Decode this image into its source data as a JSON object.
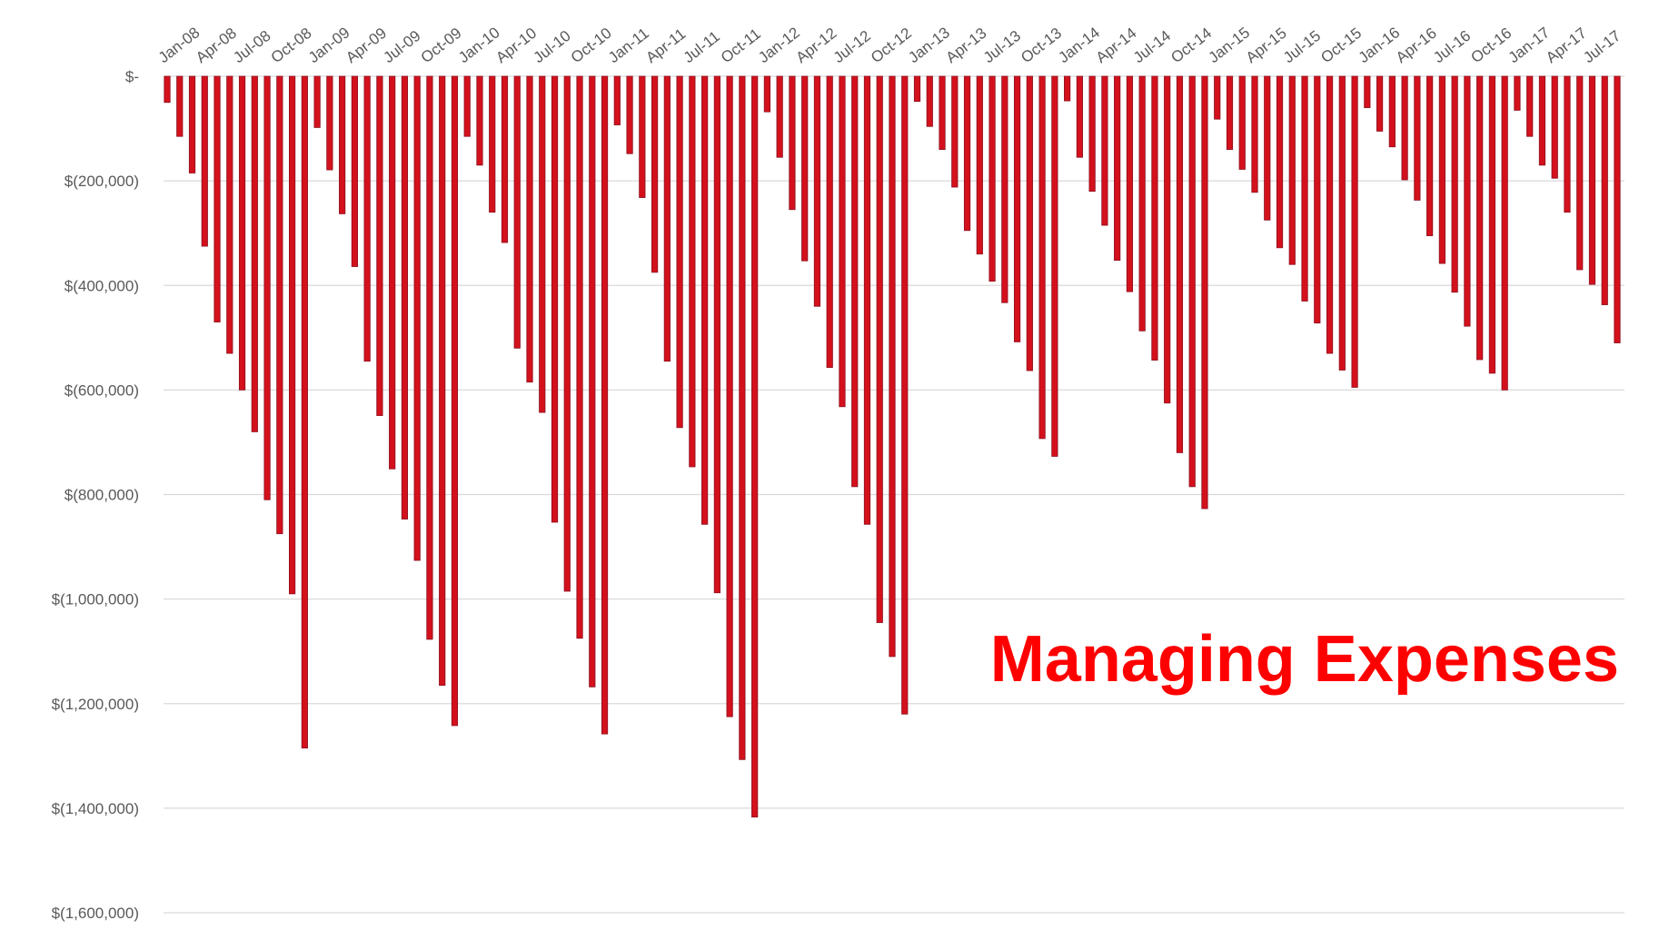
{
  "chart_data": {
    "type": "bar",
    "annotation": "Managing Expenses",
    "categories": [
      "Jan-08",
      null,
      null,
      "Apr-08",
      null,
      null,
      "Jul-08",
      null,
      null,
      "Oct-08",
      null,
      null,
      "Jan-09",
      null,
      null,
      "Apr-09",
      null,
      null,
      "Jul-09",
      null,
      null,
      "Oct-09",
      null,
      null,
      "Jan-10",
      null,
      null,
      "Apr-10",
      null,
      null,
      "Jul-10",
      null,
      null,
      "Oct-10",
      null,
      null,
      "Jan-11",
      null,
      null,
      "Apr-11",
      null,
      null,
      "Jul-11",
      null,
      null,
      "Oct-11",
      null,
      null,
      "Jan-12",
      null,
      null,
      "Apr-12",
      null,
      null,
      "Jul-12",
      null,
      null,
      "Oct-12",
      null,
      null,
      "Jan-13",
      null,
      null,
      "Apr-13",
      null,
      null,
      "Jul-13",
      null,
      null,
      "Oct-13",
      null,
      null,
      "Jan-14",
      null,
      null,
      "Apr-14",
      null,
      null,
      "Jul-14",
      null,
      null,
      "Oct-14",
      null,
      null,
      "Jan-15",
      null,
      null,
      "Apr-15",
      null,
      null,
      "Jul-15",
      null,
      null,
      "Oct-15",
      null,
      null,
      "Jan-16",
      null,
      null,
      "Apr-16",
      null,
      null,
      "Jul-16",
      null,
      null,
      "Oct-16",
      null,
      null,
      "Jan-17",
      null,
      null,
      "Apr-17",
      null,
      null,
      "Jul-17",
      null,
      null
    ],
    "values": [
      -50000,
      -115000,
      -185000,
      -325000,
      -470000,
      -530000,
      -600000,
      -680000,
      -810000,
      -875000,
      -990000,
      -1285000,
      -98000,
      -179000,
      -263000,
      -364000,
      -545000,
      -649000,
      -751000,
      -847000,
      -926000,
      -1077000,
      -1165000,
      -1242000,
      -115000,
      -170000,
      -260000,
      -318000,
      -520000,
      -585000,
      -643000,
      -853000,
      -985000,
      -1075000,
      -1168000,
      -1258000,
      -93000,
      -148000,
      -232000,
      -375000,
      -545000,
      -672000,
      -747000,
      -857000,
      -988000,
      -1225000,
      -1307000,
      -1417000,
      -68000,
      -155000,
      -255000,
      -353000,
      -440000,
      -557000,
      -632000,
      -785000,
      -857000,
      -1045000,
      -1110000,
      -1220000,
      -48000,
      -96000,
      -140000,
      -212000,
      -295000,
      -340000,
      -392000,
      -433000,
      -508000,
      -563000,
      -693000,
      -727000,
      -47000,
      -155000,
      -220000,
      -285000,
      -352000,
      -412000,
      -487000,
      -543000,
      -625000,
      -720000,
      -785000,
      -827000,
      -82000,
      -140000,
      -178000,
      -222000,
      -275000,
      -328000,
      -360000,
      -430000,
      -472000,
      -530000,
      -562000,
      -595000,
      -60000,
      -105000,
      -135000,
      -198000,
      -237000,
      -305000,
      -358000,
      -413000,
      -478000,
      -542000,
      -568000,
      -600000,
      -65000,
      -115000,
      -170000,
      -195000,
      -260000,
      -370000,
      -398000,
      -437000,
      -510000
    ],
    "color": "#d3111c",
    "ylim": [
      -1600000,
      0
    ],
    "yticks": [
      {
        "value": 0,
        "label": "$-"
      },
      {
        "value": -200000,
        "label": "$(200,000)"
      },
      {
        "value": -400000,
        "label": "$(400,000)"
      },
      {
        "value": -600000,
        "label": "$(600,000)"
      },
      {
        "value": -800000,
        "label": "$(800,000)"
      },
      {
        "value": -1000000,
        "label": "$(1,000,000)"
      },
      {
        "value": -1200000,
        "label": "$(1,200,000)"
      },
      {
        "value": -1400000,
        "label": "$(1,400,000)"
      },
      {
        "value": -1600000,
        "label": "$(1,600,000)"
      }
    ],
    "grid": true
  }
}
